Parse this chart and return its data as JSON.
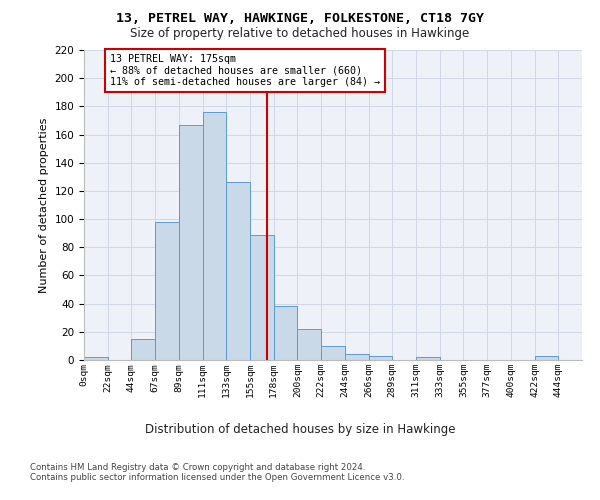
{
  "title": "13, PETREL WAY, HAWKINGE, FOLKESTONE, CT18 7GY",
  "subtitle": "Size of property relative to detached houses in Hawkinge",
  "xlabel": "Distribution of detached houses by size in Hawkinge",
  "ylabel": "Number of detached properties",
  "bin_labels": [
    "0sqm",
    "22sqm",
    "44sqm",
    "67sqm",
    "89sqm",
    "111sqm",
    "133sqm",
    "155sqm",
    "178sqm",
    "200sqm",
    "222sqm",
    "244sqm",
    "266sqm",
    "289sqm",
    "311sqm",
    "333sqm",
    "355sqm",
    "377sqm",
    "400sqm",
    "422sqm",
    "444sqm"
  ],
  "bar_heights": [
    2,
    0,
    15,
    98,
    167,
    176,
    126,
    89,
    38,
    22,
    10,
    4,
    3,
    0,
    2,
    0,
    0,
    0,
    0,
    3,
    0
  ],
  "bar_color": "#c9d9e8",
  "bar_edge_color": "#5b9bd5",
  "vline_x": 7.72,
  "annotation_text": "13 PETREL WAY: 175sqm\n← 88% of detached houses are smaller (660)\n11% of semi-detached houses are larger (84) →",
  "annotation_box_color": "#ffffff",
  "annotation_box_edge": "#cc0000",
  "vline_color": "#cc0000",
  "grid_color": "#d0d8e8",
  "background_color": "#eef2f8",
  "footer_text": "Contains HM Land Registry data © Crown copyright and database right 2024.\nContains public sector information licensed under the Open Government Licence v3.0.",
  "ylim": [
    0,
    220
  ],
  "yticks": [
    0,
    20,
    40,
    60,
    80,
    100,
    120,
    140,
    160,
    180,
    200,
    220
  ]
}
